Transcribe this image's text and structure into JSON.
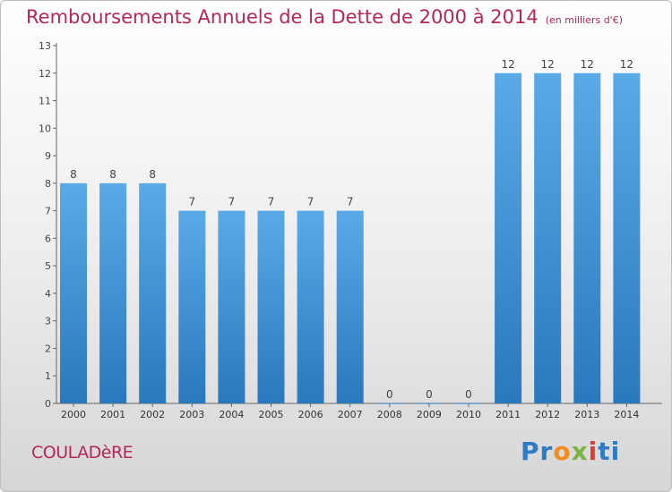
{
  "chart_data": {
    "type": "bar",
    "title": "Remboursements Annuels de la Dette de 2000 à 2014",
    "subtitle": "(en milliers d'€)",
    "categories": [
      "2000",
      "2001",
      "2002",
      "2003",
      "2004",
      "2005",
      "2006",
      "2007",
      "2008",
      "2009",
      "2010",
      "2011",
      "2012",
      "2013",
      "2014"
    ],
    "values": [
      8,
      8,
      8,
      7,
      7,
      7,
      7,
      7,
      0,
      0,
      0,
      12,
      12,
      12,
      12
    ],
    "ylim": [
      0,
      13
    ],
    "yticks": [
      0,
      1,
      2,
      3,
      4,
      5,
      6,
      7,
      8,
      9,
      10,
      11,
      12,
      13
    ],
    "xlabel": "",
    "ylabel": "",
    "grid": false,
    "bar_color": "#4a9fe0"
  },
  "commune": "COULADèRE",
  "brand": {
    "p1": "P",
    "p2": "r",
    "p3": "o",
    "p4": "x",
    "p5": "i",
    "p6": "ti"
  }
}
